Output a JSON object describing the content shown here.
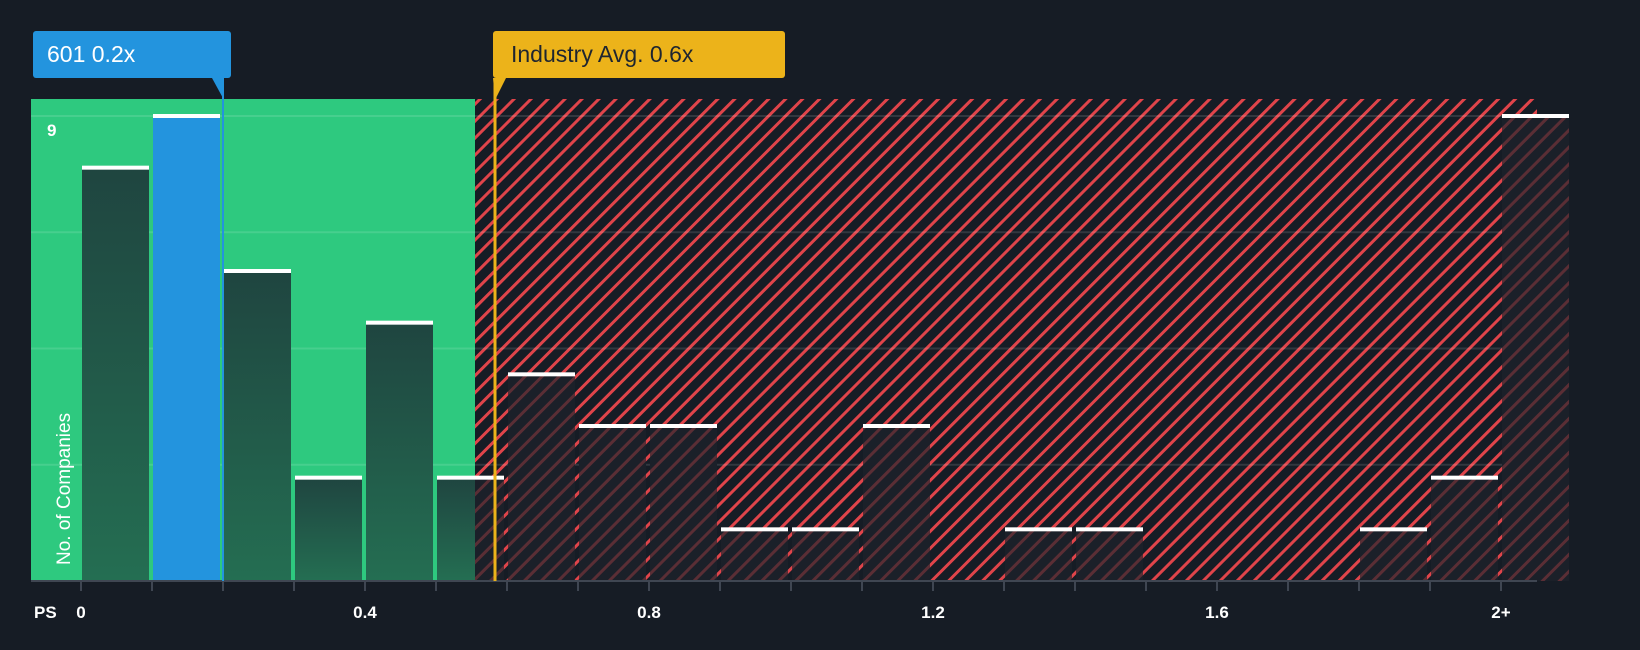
{
  "callouts": {
    "company": {
      "label": "601 0.2x",
      "value": 0.2,
      "color": "#2394de"
    },
    "industry": {
      "label": "Industry Avg. 0.6x",
      "value": 0.6,
      "color": "#ecb31a"
    }
  },
  "axis": {
    "x_prefix": "PS",
    "x_ticks": [
      "0",
      "0.4",
      "0.8",
      "1.2",
      "1.6",
      "2+"
    ],
    "y_top_label": "9",
    "y_title": "No. of Companies"
  },
  "colors": {
    "background": "#161c25",
    "undervalued_zone": "#2ec97f",
    "overvalued_hatch": "#e0444a",
    "bar_green": "#204a40",
    "bar_dark": "#1b2029",
    "highlight_bar": "#2394de",
    "bar_cap": "#ffffff"
  },
  "chart_data": {
    "type": "bar",
    "title": "",
    "xlabel": "PS",
    "ylabel": "No. of Companies",
    "categories": [
      "0-0.1",
      "0.1-0.2",
      "0.2-0.3",
      "0.3-0.4",
      "0.4-0.5",
      "0.5-0.6",
      "0.6-0.7",
      "0.7-0.8",
      "0.8-0.9",
      "0.9-1.0",
      "1.0-1.1",
      "1.1-1.2",
      "1.2-1.3",
      "1.3-1.4",
      "1.4-1.5",
      "1.5-1.6",
      "1.6-1.7",
      "1.7-1.8",
      "1.8-1.9",
      "1.9-2.0",
      "2+"
    ],
    "values": [
      8,
      9,
      6,
      2,
      5,
      2,
      4,
      3,
      3,
      1,
      1,
      3,
      0,
      1,
      1,
      0,
      0,
      0,
      1,
      2,
      9
    ],
    "highlight_index": 1,
    "x_tick_labels": [
      "0",
      "0.4",
      "0.8",
      "1.2",
      "1.6",
      "2+"
    ],
    "ylim": [
      0,
      9
    ],
    "y_tick_labels": [
      "9"
    ],
    "grid": true,
    "annotations": [
      {
        "text": "601 0.2x",
        "x": 0.2
      },
      {
        "text": "Industry Avg. 0.6x",
        "x": 0.6
      }
    ],
    "zones": [
      {
        "name": "below-industry",
        "from": 0,
        "to": 0.555,
        "color": "#2ec97f"
      },
      {
        "name": "above-industry",
        "from": 0.555,
        "to": 2.1,
        "color": "#e0444a",
        "pattern": "hatch"
      }
    ]
  }
}
